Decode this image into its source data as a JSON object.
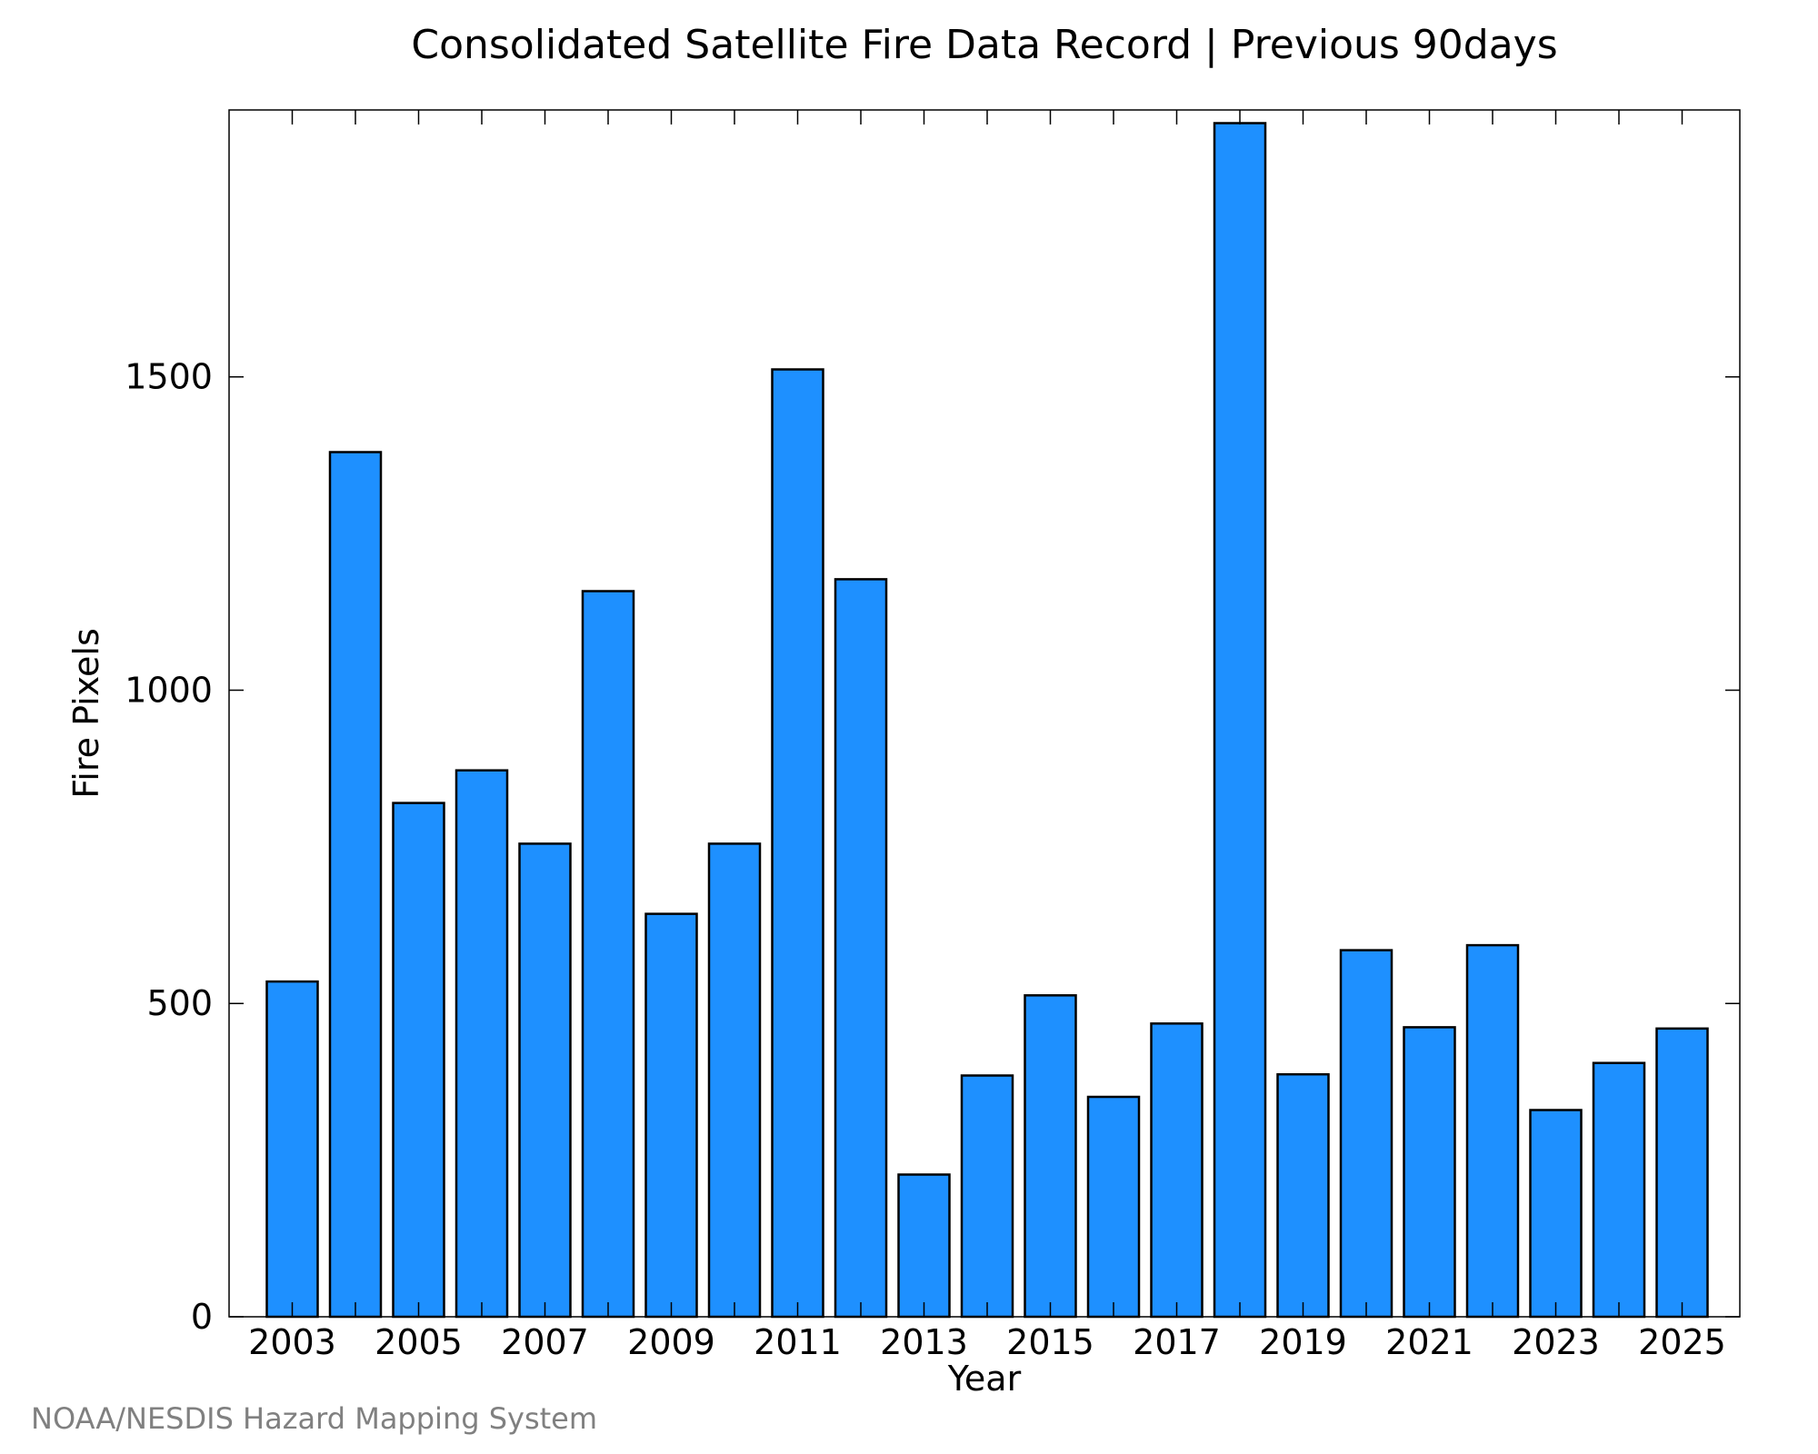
{
  "chart_data": {
    "type": "bar",
    "title": "Consolidated Satellite Fire Data Record | Previous 90days",
    "xlabel": "Year",
    "ylabel": "Fire Pixels",
    "categories": [
      "2003",
      "2004",
      "2005",
      "2006",
      "2007",
      "2008",
      "2009",
      "2010",
      "2011",
      "2012",
      "2013",
      "2014",
      "2015",
      "2016",
      "2017",
      "2018",
      "2019",
      "2020",
      "2021",
      "2022",
      "2023",
      "2024",
      "2025"
    ],
    "values": [
      535,
      1380,
      820,
      872,
      755,
      1158,
      643,
      755,
      1512,
      1177,
      227,
      385,
      513,
      351,
      468,
      1905,
      387,
      585,
      462,
      593,
      330,
      405,
      460
    ],
    "x_tick_labels": [
      "2003",
      "2005",
      "2007",
      "2009",
      "2011",
      "2013",
      "2015",
      "2017",
      "2019",
      "2021",
      "2023",
      "2025"
    ],
    "y_tick_labels": [
      "0",
      "500",
      "1000",
      "1500"
    ],
    "y_ticks": [
      0,
      500,
      1000,
      1500
    ],
    "ylim": [
      0,
      2000
    ],
    "grid": false,
    "bar_color": "#1E90FF",
    "bar_edge_color": "#000000"
  },
  "credit": "NOAA/NESDIS Hazard Mapping System"
}
